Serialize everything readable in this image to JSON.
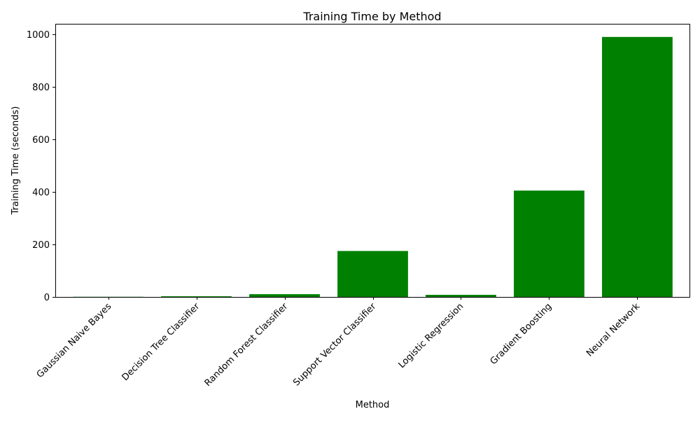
{
  "chart_data": {
    "type": "bar",
    "title": "Training Time by Method",
    "xlabel": "Method",
    "ylabel": "Training Time (seconds)",
    "categories": [
      "Gaussian Naive Bayes",
      "Decision Tree Classifier",
      "Random Forest Classifier",
      "Support Vector Classifier",
      "Logistic Regression",
      "Gradient Boosting",
      "Neural Network"
    ],
    "values": [
      0.6,
      2.5,
      10.5,
      175,
      8,
      405,
      990
    ],
    "ylim": [
      0,
      1040
    ],
    "yticks": [
      0,
      200,
      400,
      600,
      800,
      1000
    ],
    "bar_color": "#008000",
    "grid": false,
    "legend": false
  }
}
